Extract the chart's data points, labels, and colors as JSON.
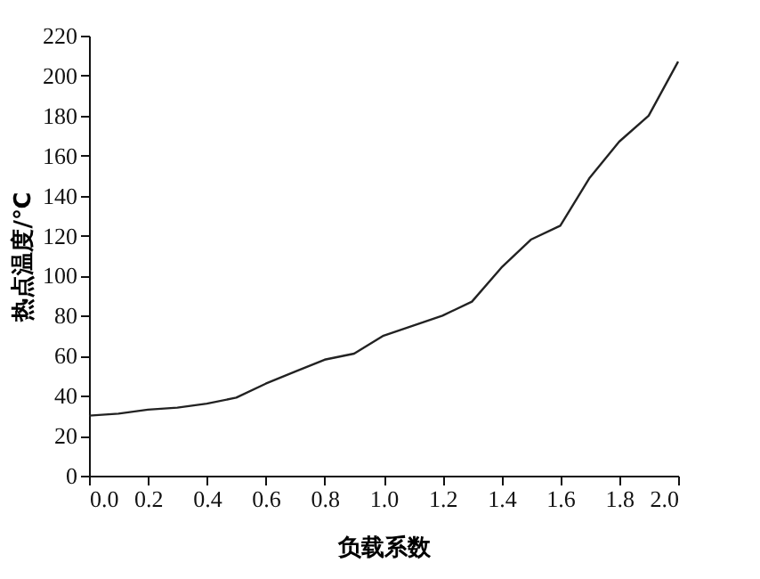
{
  "chart_data": {
    "type": "line",
    "xlabel": "负载系数",
    "ylabel": "热点温度/℃",
    "x": [
      0.0,
      0.1,
      0.2,
      0.3,
      0.4,
      0.5,
      0.6,
      0.7,
      0.8,
      0.9,
      1.0,
      1.1,
      1.2,
      1.3,
      1.4,
      1.5,
      1.6,
      1.7,
      1.8,
      1.9,
      2.0
    ],
    "series": [
      {
        "color": "#222222",
        "values": [
          30,
          31,
          33,
          34,
          36,
          39,
          46,
          52,
          58,
          61,
          70,
          75,
          80,
          87,
          104,
          118,
          125,
          149,
          167,
          180,
          207
        ]
      }
    ],
    "xlim": [
      0,
      2.0
    ],
    "xticks": [
      {
        "value": 0,
        "label": "0.0"
      },
      0.2,
      0.4,
      0.6,
      0.8,
      {
        "value": 1,
        "label": "1.0"
      },
      1.2,
      1.4,
      1.6,
      1.8,
      {
        "value": 2,
        "label": "2.0"
      }
    ],
    "ylim": [
      0,
      220
    ],
    "yticks": [
      0,
      20,
      40,
      60,
      80,
      100,
      120,
      140,
      160,
      180,
      200,
      220
    ],
    "grid": false,
    "marker": "none",
    "line_style": "solid"
  }
}
